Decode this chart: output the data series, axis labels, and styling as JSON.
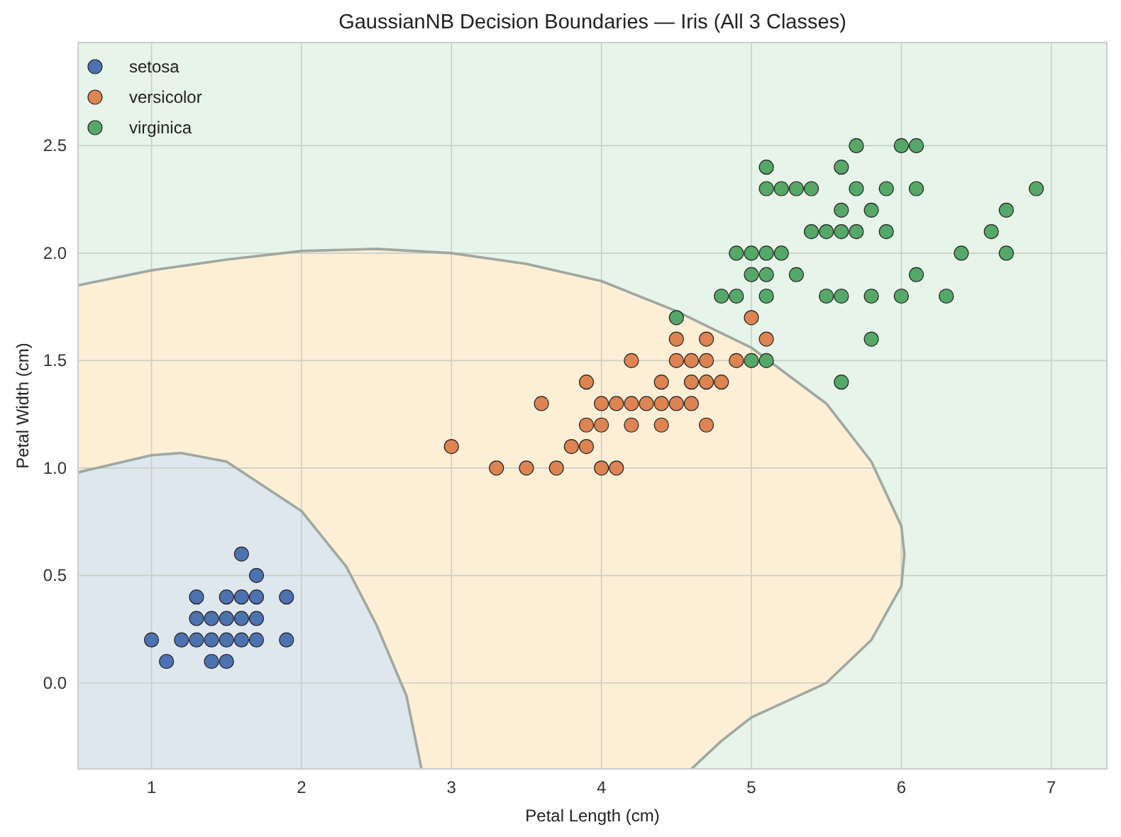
{
  "chart_data": {
    "type": "scatter",
    "title": "GaussianNB Decision Boundaries — Iris (All 3 Classes)",
    "xlabel": "Petal Length (cm)",
    "ylabel": "Petal Width (cm)",
    "xlim": [
      0.51,
      7.37
    ],
    "ylim": [
      -0.4,
      2.98
    ],
    "xticks": [
      1,
      2,
      3,
      4,
      5,
      6,
      7
    ],
    "yticks": [
      {
        "value": 0,
        "label": "0.0"
      },
      {
        "value": 0.5,
        "label": "0.5"
      },
      {
        "value": 1,
        "label": "1.0"
      },
      {
        "value": 1.5,
        "label": "1.5"
      },
      {
        "value": 2,
        "label": "2.0"
      },
      {
        "value": 2.5,
        "label": "2.5"
      }
    ],
    "grid": true,
    "legend": "top left",
    "marker": "circle",
    "series": [
      {
        "type": "line",
        "marker": "none",
        "line_style": "solid",
        "color": "#a0a8a0",
        "x": [
          0.51,
          1,
          1.5,
          2,
          2.5,
          3,
          3.5,
          4,
          4.5,
          5,
          5.5,
          5.8,
          6,
          6.02,
          6,
          5.8,
          5.5,
          5,
          4.8,
          4.6
        ],
        "values": [
          1.85,
          1.92,
          1.97,
          2.01,
          2.02,
          2,
          1.95,
          1.87,
          1.73,
          1.56,
          1.3,
          1.03,
          0.73,
          0.6,
          0.45,
          0.2,
          0,
          -0.16,
          -0.27,
          -0.4
        ]
      },
      {
        "type": "line",
        "marker": "none",
        "line_style": "solid",
        "color": "#a0a8a0",
        "x": [
          0.51,
          1,
          1.2,
          1.5,
          2,
          2.3,
          2.5,
          2.7,
          2.8
        ],
        "values": [
          0.98,
          1.06,
          1.07,
          1.03,
          0.8,
          0.54,
          0.27,
          -0.06,
          -0.4
        ]
      },
      {
        "name": "setosa",
        "color": "#4c72b0",
        "x": [
          1.4,
          1.3,
          1.5,
          1.7,
          1.4,
          1.5,
          1.6,
          1.4,
          1.1,
          1.2,
          1.5,
          1.3,
          1.7,
          1.5,
          1.7,
          1.0,
          1.7,
          1.9,
          1.6,
          1.3,
          1.6,
          1.9,
          1.6
        ],
        "values": [
          0.2,
          0.2,
          0.2,
          0.4,
          0.3,
          0.1,
          0.2,
          0.1,
          0.1,
          0.2,
          0.4,
          0.4,
          0.3,
          0.3,
          0.2,
          0.2,
          0.5,
          0.2,
          0.4,
          0.3,
          0.6,
          0.4,
          0.3
        ]
      },
      {
        "name": "versicolor",
        "color": "#dd8452",
        "x": [
          4.7,
          4.5,
          4.9,
          4.0,
          4.6,
          4.5,
          4.7,
          3.3,
          4.6,
          3.9,
          3.5,
          4.2,
          4.0,
          3.6,
          4.4,
          4.1,
          3.9,
          4.7,
          4.3,
          4.8,
          5.0,
          3.8,
          3.7,
          3.9,
          5.1,
          4.5,
          4.7,
          4.4,
          4.1,
          4.4,
          4.6,
          4.0,
          4.2,
          4.2,
          3.0
        ],
        "values": [
          1.4,
          1.5,
          1.5,
          1.3,
          1.5,
          1.3,
          1.6,
          1.0,
          1.3,
          1.4,
          1.0,
          1.5,
          1.0,
          1.3,
          1.4,
          1.0,
          1.1,
          1.2,
          1.3,
          1.4,
          1.7,
          1.1,
          1.0,
          1.2,
          1.6,
          1.6,
          1.5,
          1.3,
          1.3,
          1.2,
          1.4,
          1.2,
          1.3,
          1.2,
          1.1
        ]
      },
      {
        "name": "virginica",
        "color": "#55a868",
        "x": [
          6.0,
          5.1,
          5.9,
          5.6,
          5.8,
          6.6,
          4.5,
          6.3,
          5.8,
          6.1,
          5.1,
          5.3,
          5.5,
          5.0,
          5.1,
          5.3,
          5.5,
          6.7,
          6.9,
          5.0,
          5.7,
          4.9,
          6.7,
          4.9,
          5.7,
          6.0,
          4.8,
          5.6,
          5.8,
          6.1,
          6.4,
          5.6,
          5.1,
          5.6,
          6.1,
          5.6,
          5.4,
          5.1,
          5.9,
          5.7,
          5.2,
          5.0,
          5.2,
          5.4,
          5.1
        ],
        "values": [
          2.5,
          1.9,
          2.1,
          1.8,
          2.2,
          2.1,
          1.7,
          1.8,
          1.8,
          2.5,
          2.0,
          1.9,
          2.1,
          2.0,
          2.4,
          2.3,
          1.8,
          2.2,
          2.3,
          1.5,
          2.3,
          2.0,
          2.0,
          1.8,
          2.1,
          1.8,
          1.8,
          2.1,
          1.6,
          1.9,
          2.0,
          2.2,
          1.5,
          1.4,
          2.3,
          2.4,
          2.1,
          2.3,
          2.3,
          2.5,
          2.3,
          1.9,
          2.0,
          2.3,
          1.8
        ]
      }
    ]
  }
}
